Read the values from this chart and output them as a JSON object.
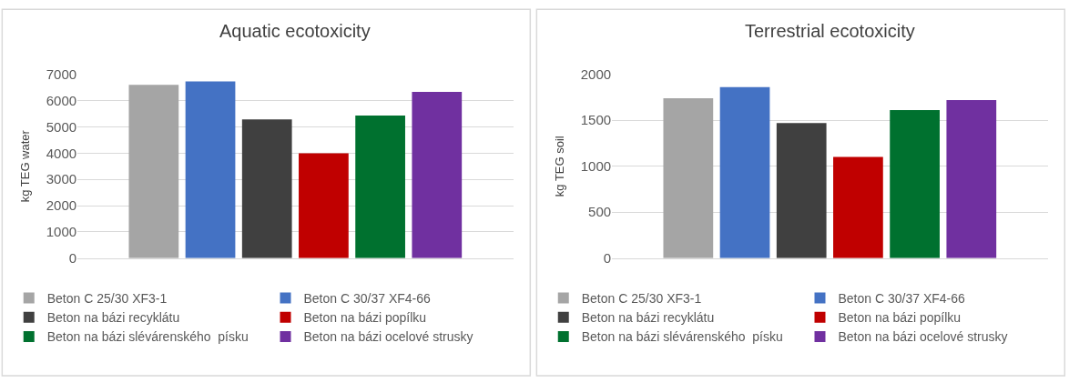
{
  "chart_data": [
    {
      "type": "bar",
      "title": "Aquatic ecotoxicity",
      "ylabel": "kg TEG water",
      "categories": [
        null
      ],
      "ylim": [
        0,
        7000
      ],
      "yticks": [
        0,
        1000,
        2000,
        3000,
        4000,
        5000,
        6000,
        7000
      ],
      "grid": "y",
      "legend": "bottom",
      "series": [
        {
          "name": "Beton C 25/30 XF3-1",
          "color": "#a5a5a5",
          "values": [
            6600
          ]
        },
        {
          "name": "Beton C 30/37 XF4-66",
          "color": "#4472c4",
          "values": [
            6730
          ]
        },
        {
          "name": "Beton na bázi recyklátu",
          "color": "#404040",
          "values": [
            5280
          ]
        },
        {
          "name": "Beton na bázi popílku",
          "color": "#c00000",
          "values": [
            3990
          ]
        },
        {
          "name": "Beton na bázi slévárenského  písku",
          "color": "#00712f",
          "values": [
            5430
          ]
        },
        {
          "name": "Beton na bázi ocelové strusky",
          "color": "#7030a0",
          "values": [
            6330
          ]
        }
      ]
    },
    {
      "type": "bar",
      "title": "Terrestrial ecotoxicity",
      "ylabel": "kg TEG soil",
      "categories": [
        null
      ],
      "ylim": [
        0,
        2000
      ],
      "yticks": [
        0,
        500,
        1000,
        1500,
        2000
      ],
      "grid": "y",
      "legend": "bottom",
      "series": [
        {
          "name": "Beton C 25/30 XF3-1",
          "color": "#a5a5a5",
          "values": [
            1740
          ]
        },
        {
          "name": "Beton C 30/37 XF4-66",
          "color": "#4472c4",
          "values": [
            1860
          ]
        },
        {
          "name": "Beton na bázi recyklátu",
          "color": "#404040",
          "values": [
            1470
          ]
        },
        {
          "name": "Beton na bázi popílku",
          "color": "#c00000",
          "values": [
            1100
          ]
        },
        {
          "name": "Beton na bázi slévárenského  písku",
          "color": "#00712f",
          "values": [
            1610
          ]
        },
        {
          "name": "Beton na bázi ocelové strusky",
          "color": "#7030a0",
          "values": [
            1720
          ]
        }
      ]
    }
  ]
}
